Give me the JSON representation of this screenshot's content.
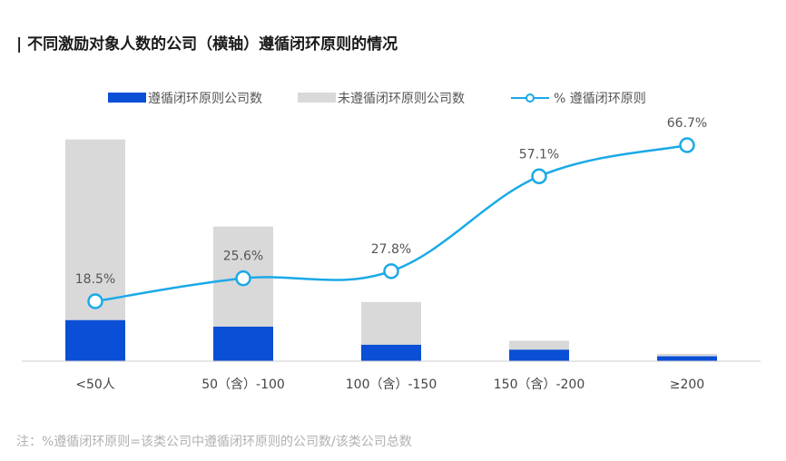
{
  "title": "| 不同激励对象人数的公司（横轴）遵循闭环原则的情况",
  "note": "注：%遵循闭环原则=该类公司中遵循闭环原则的公司数/该类公司总数",
  "colors": {
    "compliant": "#0a4fd6",
    "non_compliant": "#d9d9d9",
    "line": "#1aa9e8",
    "axis": "#cccccc"
  },
  "chart_data": {
    "type": "bar",
    "stacked": true,
    "categories": [
      "<50人",
      "50（含）-100",
      "100（含）-150",
      "150（含）-200",
      "≥200"
    ],
    "series": [
      {
        "name": "遵循闭环原则公司数",
        "values": [
          5,
          4.2,
          2,
          1.4,
          0.6
        ]
      },
      {
        "name": "未遵循闭环原则公司数",
        "values": [
          22,
          12.2,
          5.2,
          1.1,
          0.3
        ]
      }
    ],
    "line_series": {
      "name": "% 遵循闭环原则",
      "values": [
        18.5,
        25.6,
        27.8,
        57.1,
        66.7
      ],
      "labels": [
        "18.5%",
        "25.6%",
        "27.8%",
        "57.1%",
        "66.7%"
      ]
    },
    "legend": "top-center",
    "grid": false
  }
}
